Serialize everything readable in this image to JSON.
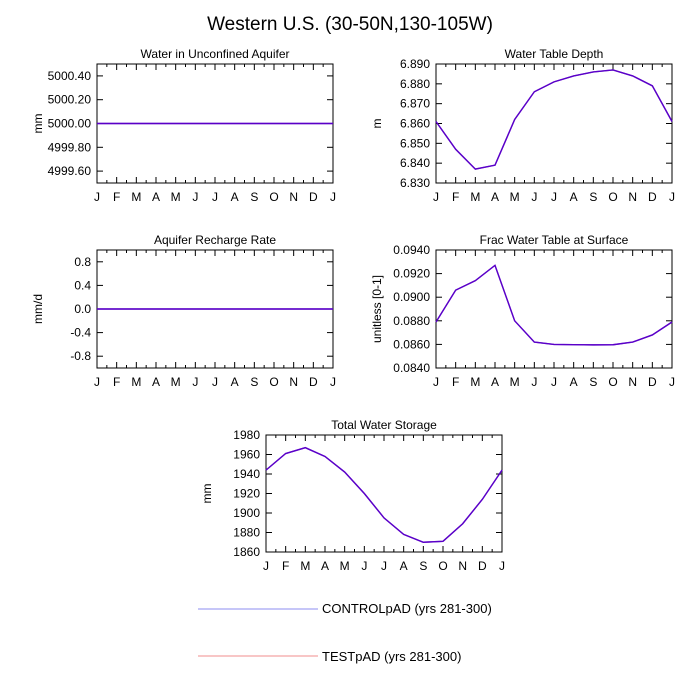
{
  "figure": {
    "title": "Western U.S. (30-50N,130-105W)"
  },
  "months": [
    "J",
    "F",
    "M",
    "A",
    "M",
    "J",
    "J",
    "A",
    "S",
    "O",
    "N",
    "D",
    "J"
  ],
  "series_colors": {
    "control": "#5a6ee6",
    "test": "#f08080",
    "overlap": "#5a00c8"
  },
  "chart_data": [
    {
      "type": "line",
      "title": "Water in Unconfined Aquifer",
      "ylabel": "mm",
      "xlabel": "",
      "ylim": [
        4999.5,
        5000.5
      ],
      "yticks": [
        "5000.40",
        "5000.20",
        "5000.00",
        "4999.80",
        "4999.60"
      ],
      "ytick_values": [
        5000.4,
        5000.2,
        5000.0,
        4999.8,
        4999.6
      ],
      "series": [
        {
          "name": "CONTROLpAD (yrs 281-300)",
          "values": [
            5000,
            5000,
            5000,
            5000,
            5000,
            5000,
            5000,
            5000,
            5000,
            5000,
            5000,
            5000,
            5000
          ]
        },
        {
          "name": "TESTpAD (yrs 281-300)",
          "values": [
            5000,
            5000,
            5000,
            5000,
            5000,
            5000,
            5000,
            5000,
            5000,
            5000,
            5000,
            5000,
            5000
          ]
        }
      ]
    },
    {
      "type": "line",
      "title": "Water Table Depth",
      "ylabel": "m",
      "xlabel": "",
      "ylim": [
        6.83,
        6.89
      ],
      "yticks": [
        "6.890",
        "6.880",
        "6.870",
        "6.860",
        "6.850",
        "6.840",
        "6.830"
      ],
      "ytick_values": [
        6.89,
        6.88,
        6.87,
        6.86,
        6.85,
        6.84,
        6.83
      ],
      "series": [
        {
          "name": "CONTROLpAD (yrs 281-300)",
          "values": [
            6.861,
            6.847,
            6.837,
            6.839,
            6.862,
            6.876,
            6.881,
            6.884,
            6.886,
            6.887,
            6.884,
            6.879,
            6.861
          ]
        },
        {
          "name": "TESTpAD (yrs 281-300)",
          "values": [
            6.861,
            6.847,
            6.837,
            6.839,
            6.862,
            6.876,
            6.881,
            6.884,
            6.886,
            6.887,
            6.884,
            6.879,
            6.861
          ]
        }
      ]
    },
    {
      "type": "line",
      "title": "Aquifer Recharge Rate",
      "ylabel": "mm/d",
      "xlabel": "",
      "ylim": [
        -1.0,
        1.0
      ],
      "yticks": [
        "0.8",
        "0.4",
        "0.0",
        "-0.4",
        "-0.8"
      ],
      "ytick_values": [
        0.8,
        0.4,
        0.0,
        -0.4,
        -0.8
      ],
      "series": [
        {
          "name": "CONTROLpAD (yrs 281-300)",
          "values": [
            0,
            0,
            0,
            0,
            0,
            0,
            0,
            0,
            0,
            0,
            0,
            0,
            0
          ]
        },
        {
          "name": "TESTpAD (yrs 281-300)",
          "values": [
            0,
            0,
            0,
            0,
            0,
            0,
            0,
            0,
            0,
            0,
            0,
            0,
            0
          ]
        }
      ]
    },
    {
      "type": "line",
      "title": "Frac Water Table at Surface",
      "ylabel": "unitless [0-1]",
      "xlabel": "",
      "ylim": [
        0.084,
        0.094
      ],
      "yticks": [
        "0.0940",
        "0.0920",
        "0.0900",
        "0.0880",
        "0.0860",
        "0.0840"
      ],
      "ytick_values": [
        0.094,
        0.092,
        0.09,
        0.088,
        0.086,
        0.084
      ],
      "series": [
        {
          "name": "CONTROLpAD (yrs 281-300)",
          "values": [
            0.0879,
            0.0906,
            0.0914,
            0.0927,
            0.088,
            0.0862,
            0.086,
            0.08598,
            0.08596,
            0.08597,
            0.0862,
            0.0868,
            0.0879
          ]
        },
        {
          "name": "TESTpAD (yrs 281-300)",
          "values": [
            0.0879,
            0.0906,
            0.0914,
            0.0927,
            0.088,
            0.0862,
            0.086,
            0.08598,
            0.08596,
            0.08597,
            0.0862,
            0.0868,
            0.0879
          ]
        }
      ]
    },
    {
      "type": "line",
      "title": "Total Water Storage",
      "ylabel": "mm",
      "xlabel": "",
      "ylim": [
        1860,
        1980
      ],
      "yticks": [
        "1980",
        "1960",
        "1940",
        "1920",
        "1900",
        "1880",
        "1860"
      ],
      "ytick_values": [
        1980,
        1960,
        1940,
        1920,
        1900,
        1880,
        1860
      ],
      "series": [
        {
          "name": "CONTROLpAD (yrs 281-300)",
          "values": [
            1944,
            1961,
            1967,
            1958,
            1942,
            1920,
            1895,
            1878,
            1870,
            1871,
            1889,
            1914,
            1944
          ]
        },
        {
          "name": "TESTpAD (yrs 281-300)",
          "values": [
            1944,
            1961,
            1967,
            1958,
            1942,
            1920,
            1895,
            1878,
            1870,
            1871,
            1889,
            1914,
            1944
          ]
        }
      ]
    }
  ],
  "legend": {
    "placement": "bottom-center",
    "entries": [
      {
        "label": "CONTROLpAD (yrs 281-300)",
        "color": "#8c8cf0"
      },
      {
        "label": "TESTpAD (yrs 281-300)",
        "color": "#f08c8c"
      }
    ]
  }
}
